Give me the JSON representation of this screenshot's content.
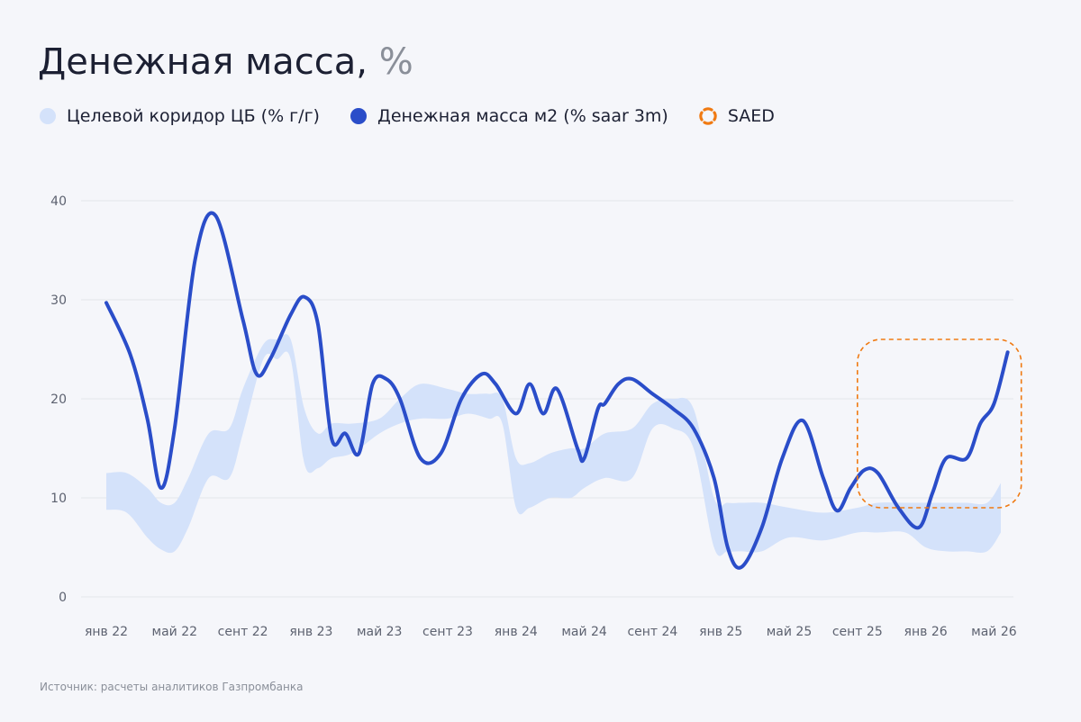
{
  "title": "Денежная масса,",
  "title_unit": "%",
  "legend": {
    "band": "Целевой коридор ЦБ (% г/г)",
    "line": "Денежная масса м2 (% saar 3m)",
    "saed": "SAED"
  },
  "source": "Источник: расчеты аналитиков Газпромбанка",
  "colors": {
    "band": "#d4e2fa",
    "line": "#2a4dc9",
    "saed": "#f07a12",
    "grid": "#e3e5ea"
  },
  "chart_data": {
    "type": "line",
    "categories": [
      "янв 22",
      "май 22",
      "сент 22",
      "янв 23",
      "май 23",
      "сент 23",
      "янв 24",
      "май 24",
      "сент 24",
      "янв 25",
      "май 25",
      "сент 25",
      "янв 26",
      "май 26"
    ],
    "ylim": [
      0,
      40
    ],
    "yticks": [
      0,
      10,
      20,
      30,
      40
    ],
    "grid": true,
    "legend_position": "top-left",
    "band": {
      "name": "Целевой коридор ЦБ (% г/г)",
      "x": [
        0,
        0.3,
        0.6,
        0.8,
        1.0,
        1.2,
        1.5,
        1.8,
        2.0,
        2.3,
        2.5,
        2.7,
        2.9,
        3.1,
        3.3,
        3.6,
        4.0,
        4.3,
        4.6,
        5.0,
        5.3,
        5.6,
        5.8,
        6.0,
        6.2,
        6.5,
        6.8,
        7.0,
        7.3,
        7.7,
        8.0,
        8.3,
        8.6,
        8.9,
        9.1,
        9.3,
        9.6,
        10.0,
        10.5,
        11.0,
        11.3,
        11.7,
        12.0,
        12.3,
        12.6,
        12.9,
        13.1
      ],
      "upper": [
        12.5,
        12.5,
        11.0,
        9.5,
        9.5,
        12.0,
        16.5,
        17.0,
        21.0,
        25.5,
        26.0,
        26.0,
        19.0,
        16.5,
        17.5,
        17.5,
        18.0,
        20.0,
        21.5,
        21.0,
        20.5,
        20.5,
        20.0,
        14.0,
        13.5,
        14.5,
        15.0,
        15.0,
        16.5,
        17.0,
        19.5,
        20.0,
        19.0,
        10.0,
        9.5,
        9.5,
        9.5,
        9.0,
        8.5,
        9.0,
        9.5,
        9.5,
        9.5,
        9.5,
        9.5,
        9.5,
        11.5
      ],
      "lower": [
        8.8,
        8.5,
        6.0,
        4.8,
        4.6,
        7.0,
        12.0,
        12.0,
        16.5,
        24.0,
        24.0,
        24.0,
        13.5,
        13.0,
        14.0,
        14.5,
        16.5,
        17.5,
        18.0,
        18.0,
        18.5,
        18.0,
        17.5,
        9.0,
        9.0,
        10.0,
        10.0,
        11.0,
        12.0,
        12.0,
        17.0,
        17.0,
        15.0,
        5.0,
        4.6,
        4.6,
        4.6,
        6.0,
        5.7,
        6.5,
        6.5,
        6.5,
        5.0,
        4.6,
        4.6,
        4.6,
        6.5
      ]
    },
    "series": [
      {
        "name": "Денежная масса м2 (% saar 3m)",
        "x": [
          0,
          0.35,
          0.6,
          0.8,
          1.0,
          1.3,
          1.6,
          2.0,
          2.2,
          2.4,
          2.7,
          2.9,
          3.1,
          3.3,
          3.5,
          3.7,
          3.9,
          4.1,
          4.3,
          4.6,
          4.9,
          5.2,
          5.5,
          5.7,
          6.0,
          6.2,
          6.4,
          6.6,
          6.9,
          7.0,
          7.2,
          7.3,
          7.5,
          7.7,
          8.0,
          8.3,
          8.6,
          8.9,
          9.1,
          9.3,
          9.6,
          9.9,
          10.2,
          10.5,
          10.7,
          10.9,
          11.1,
          11.3,
          11.6,
          11.9,
          12.1,
          12.3,
          12.6,
          12.8,
          13.0,
          13.2
        ],
        "values": [
          29.7,
          24.5,
          18.0,
          11.0,
          17.0,
          34.0,
          38.5,
          28.0,
          22.5,
          24.0,
          28.5,
          30.3,
          27.5,
          16.0,
          16.5,
          14.5,
          21.5,
          22.0,
          20.0,
          14.0,
          14.5,
          20.0,
          22.5,
          21.5,
          18.5,
          21.5,
          18.5,
          21.0,
          15.0,
          14.0,
          19.0,
          19.5,
          21.5,
          22.0,
          20.5,
          19.0,
          17.0,
          12.0,
          5.0,
          3.0,
          7.0,
          14.0,
          17.8,
          12.0,
          8.7,
          11.0,
          12.8,
          12.5,
          9.0,
          7.0,
          10.5,
          14.0,
          14.0,
          17.5,
          19.5,
          24.7
        ]
      }
    ],
    "annotation": {
      "label": "SAED",
      "x_range": [
        11.0,
        13.4
      ],
      "y_range": [
        9.0,
        26.0
      ]
    }
  }
}
